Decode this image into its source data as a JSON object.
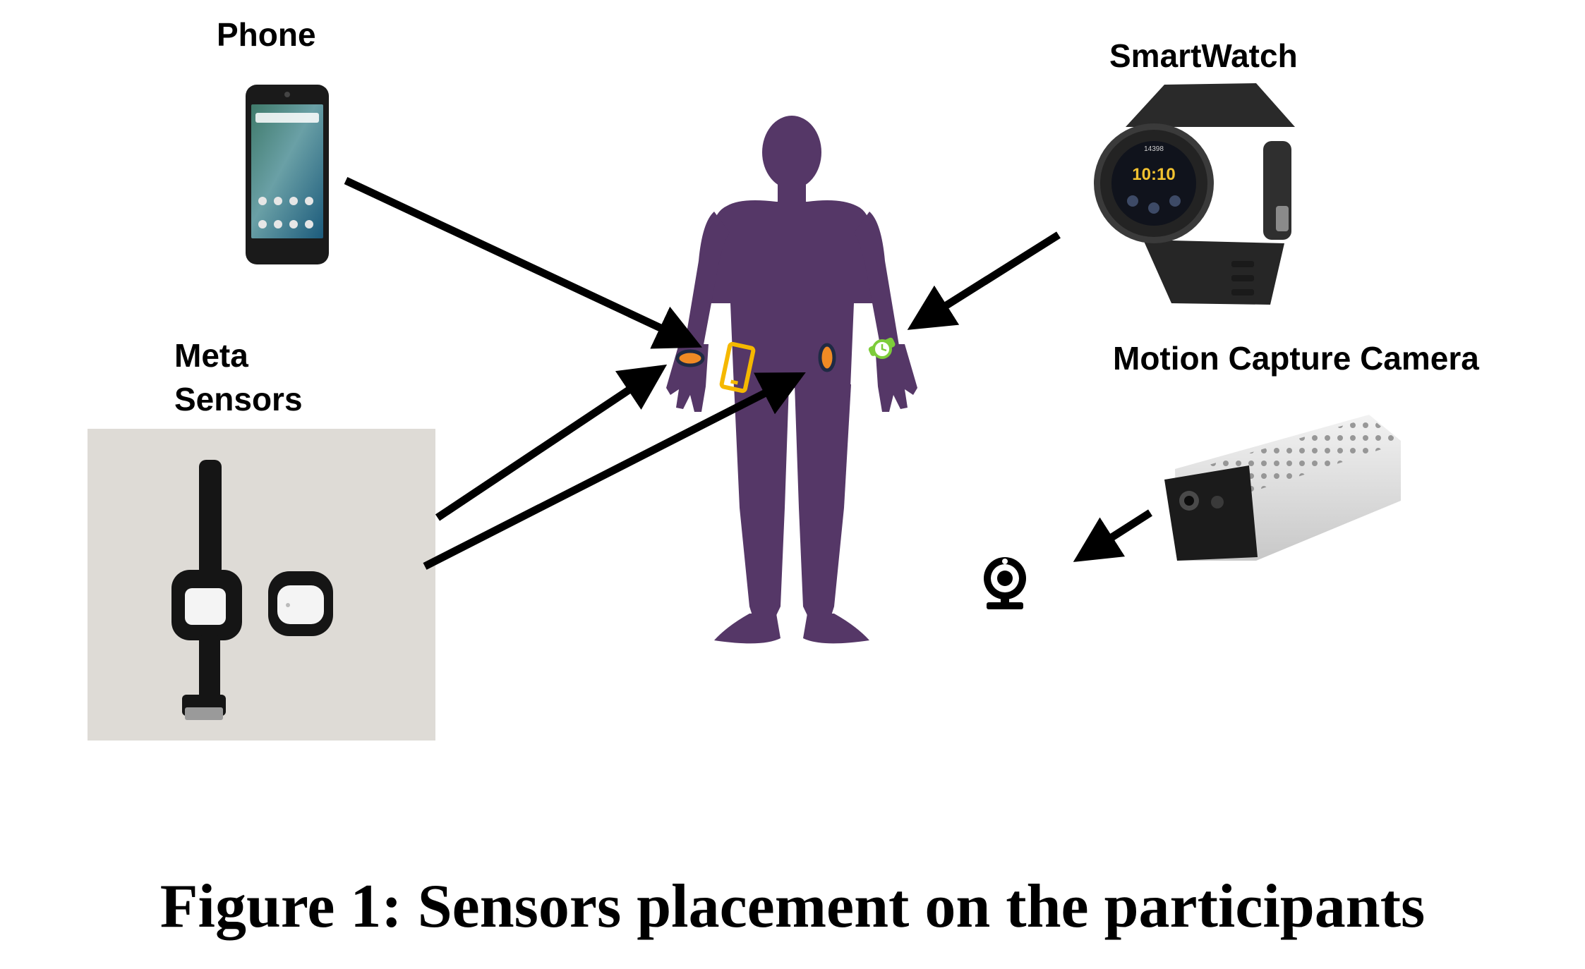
{
  "labels": {
    "phone": "Phone",
    "smartwatch": "SmartWatch",
    "meta_line1": "Meta",
    "meta_line2": "Sensors",
    "motion_camera": "Motion Capture Camera"
  },
  "caption": "Figure 1: Sensors placement on the participants",
  "colors": {
    "body": "#553767",
    "arrow": "#000000",
    "wrist_sensor": "#f08a24",
    "phone_marker": "#f5b800",
    "watch_marker": "#7dcc3a",
    "sensor_outline": "#1f2a44"
  },
  "icons": {
    "phone": "smartphone-photo",
    "watch": "smartwatch-photo",
    "meta": "meta-sensors-photo",
    "camera": "depth-camera-photo",
    "webcam": "webcam-icon"
  }
}
